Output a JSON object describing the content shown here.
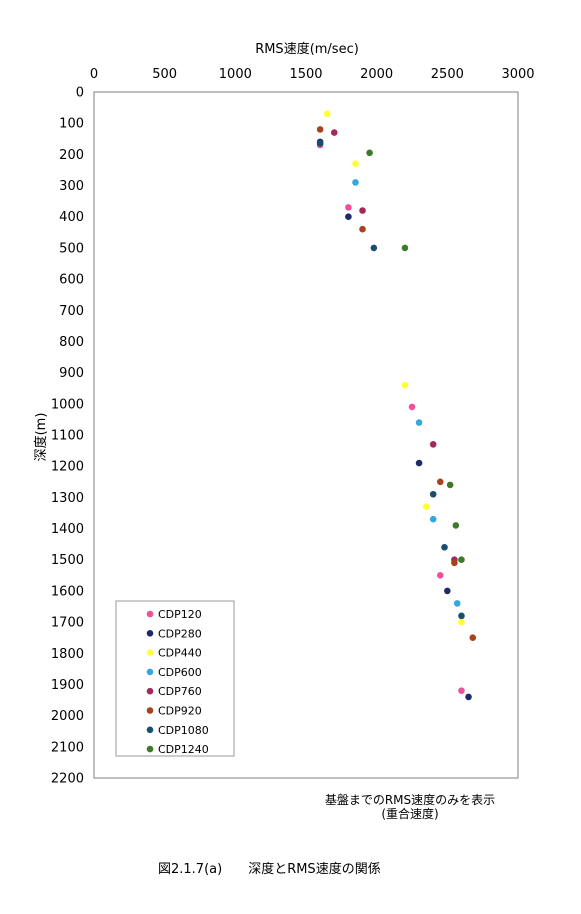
{
  "chart_data": {
    "type": "scatter",
    "xlabel": "RMS速度(m/sec)",
    "ylabel": "深度(m)",
    "x_ticks": [
      0,
      500,
      1000,
      1500,
      2000,
      2500,
      3000
    ],
    "y_ticks": [
      0,
      100,
      200,
      300,
      400,
      500,
      600,
      700,
      800,
      900,
      1000,
      1100,
      1200,
      1300,
      1400,
      1500,
      1600,
      1700,
      1800,
      1900,
      2000,
      2100,
      2200
    ],
    "xlim": [
      0,
      3000
    ],
    "ylim": [
      0,
      2200
    ],
    "y_inverted": true,
    "x_axis_position": "top",
    "grid": false,
    "legend_position": "bottom-left",
    "series": [
      {
        "name": "CDP120",
        "color": "#f0509a",
        "points": [
          [
            1600,
            170
          ],
          [
            1800,
            370
          ],
          [
            2250,
            1010
          ],
          [
            2450,
            1550
          ],
          [
            2600,
            1920
          ]
        ]
      },
      {
        "name": "CDP280",
        "color": "#1f2a6b",
        "points": [
          [
            1600,
            160
          ],
          [
            1800,
            400
          ],
          [
            2300,
            1190
          ],
          [
            2500,
            1600
          ],
          [
            2650,
            1940
          ]
        ]
      },
      {
        "name": "CDP440",
        "color": "#ffff33",
        "points": [
          [
            1650,
            70
          ],
          [
            1850,
            230
          ],
          [
            2200,
            940
          ],
          [
            2350,
            1330
          ],
          [
            2600,
            1700
          ]
        ]
      },
      {
        "name": "CDP600",
        "color": "#33a8e0",
        "points": [
          [
            1850,
            290
          ],
          [
            2300,
            1060
          ],
          [
            2400,
            1370
          ],
          [
            2570,
            1640
          ]
        ]
      },
      {
        "name": "CDP760",
        "color": "#a4285a",
        "points": [
          [
            1700,
            130
          ],
          [
            1900,
            380
          ],
          [
            2400,
            1130
          ],
          [
            2550,
            1500
          ]
        ]
      },
      {
        "name": "CDP920",
        "color": "#a5431d",
        "points": [
          [
            1600,
            120
          ],
          [
            1900,
            440
          ],
          [
            2450,
            1250
          ],
          [
            2550,
            1510
          ],
          [
            2680,
            1750
          ]
        ]
      },
      {
        "name": "CDP1080",
        "color": "#1a4e6e",
        "points": [
          [
            1600,
            165
          ],
          [
            1980,
            500
          ],
          [
            2400,
            1290
          ],
          [
            2480,
            1460
          ],
          [
            2600,
            1680
          ]
        ]
      },
      {
        "name": "CDP1240",
        "color": "#3f7a2a",
        "points": [
          [
            1950,
            195
          ],
          [
            2200,
            500
          ],
          [
            2520,
            1260
          ],
          [
            2560,
            1390
          ],
          [
            2600,
            1500
          ]
        ]
      }
    ]
  },
  "note_line1": "基盤までのRMS速度のみを表示",
  "note_line2": "(重合速度)",
  "caption": "図2.1.7(a)　　深度とRMS速度の関係"
}
